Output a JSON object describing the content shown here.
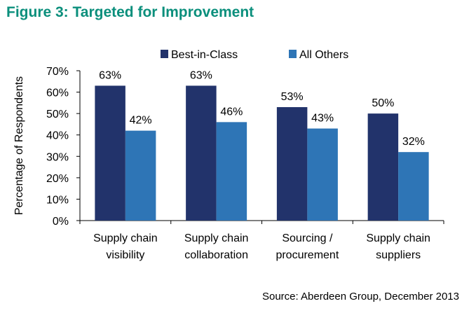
{
  "title": "Figure 3: Targeted for Improvement",
  "source": "Source: Aberdeen Group, December 2013",
  "chart_data": {
    "type": "bar",
    "title": "Figure 3: Targeted for Improvement",
    "xlabel": "",
    "ylabel": "Percentage of Respondents",
    "ylim": [
      0,
      70
    ],
    "yticks": [
      "0%",
      "10%",
      "20%",
      "30%",
      "40%",
      "50%",
      "60%",
      "70%"
    ],
    "categories": [
      [
        "Supply chain",
        "visibility"
      ],
      [
        "Supply chain",
        "collaboration"
      ],
      [
        "Sourcing /",
        "procurement"
      ],
      [
        "Supply chain",
        "suppliers"
      ]
    ],
    "series": [
      {
        "name": "Best-in-Class",
        "color": "#22336B",
        "values": [
          63,
          63,
          53,
          50
        ]
      },
      {
        "name": "All Others",
        "color": "#2E75B6",
        "values": [
          42,
          46,
          43,
          32
        ]
      }
    ],
    "legend": "top-center",
    "grid": false
  }
}
